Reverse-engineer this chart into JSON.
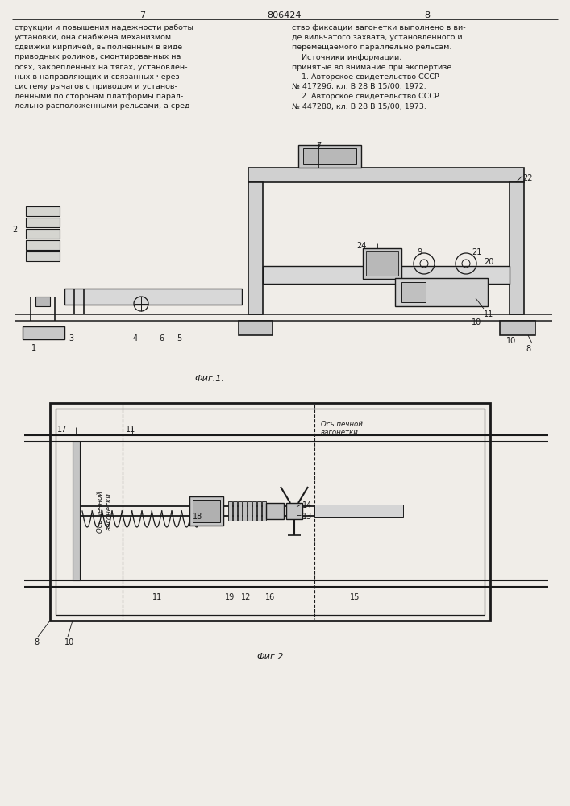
{
  "bg_color": "#f0ede8",
  "line_color": "#1a1a1a",
  "page_num_left": "7",
  "page_num_center": "806424",
  "page_num_right": "8",
  "text_left": "струкции и повышения надежности работы\nустановки, она снабжена механизмом\nсдвижки кирпичей, выполненным в виде\nприводных роликов, смонтированных на\nосях, закрепленных на тягах, установлен-\nных в направляющих и связанных через\nсистему рычагов с приводом и установ-\nленными по сторонам платформы парал-\nлельно расположенными рельсами, а сред-",
  "text_right_lines": [
    "ство фиксации вагонетки выполнено в ви-",
    "де вильчатого захвата, установленного и",
    "перемещаемого параллельно рельсам.",
    "    Источники информации,",
    "принятые во внимание при экспертизе",
    "    1. Авторское свидетельство СССР",
    "№ 417296, кл. В 28 В 15/00, 1972.",
    "    2. Авторское свидетельство СССР",
    "№ 447280, кл. В 28 В 15/00, 1973."
  ],
  "fig1_caption": "Фиг.1.",
  "fig2_caption": "Фиг.2"
}
